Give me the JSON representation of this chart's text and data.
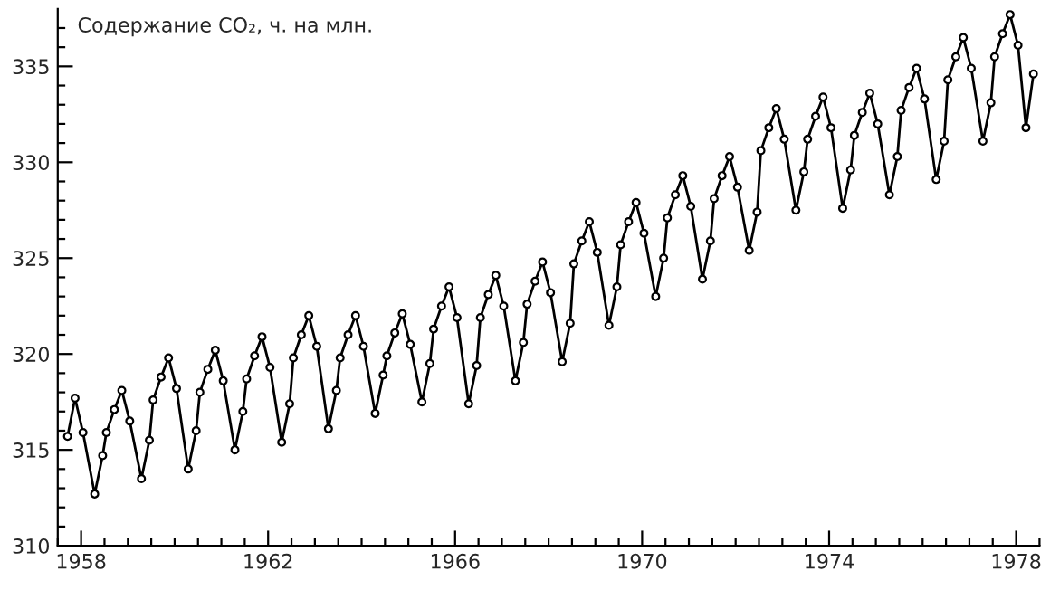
{
  "chart_data": {
    "type": "line",
    "ylabel": "Содержание CO₂, ч. на млн.",
    "x": [
      1958.21,
      1958.37,
      1958.54,
      1958.79,
      1958.96,
      1959.04,
      1959.21,
      1959.37,
      1959.54,
      1959.79,
      1959.96,
      1960.04,
      1960.21,
      1960.37,
      1960.54,
      1960.79,
      1960.96,
      1961.04,
      1961.21,
      1961.37,
      1961.54,
      1961.79,
      1961.96,
      1962.04,
      1962.21,
      1962.37,
      1962.54,
      1962.79,
      1962.96,
      1963.04,
      1963.21,
      1963.37,
      1963.54,
      1963.79,
      1963.96,
      1964.04,
      1964.21,
      1964.37,
      1964.54,
      1964.79,
      1964.96,
      1965.04,
      1965.21,
      1965.37,
      1965.54,
      1965.79,
      1965.96,
      1966.04,
      1966.21,
      1966.37,
      1966.54,
      1966.79,
      1966.96,
      1967.04,
      1967.21,
      1967.37,
      1967.54,
      1967.79,
      1967.96,
      1968.04,
      1968.21,
      1968.37,
      1968.54,
      1968.79,
      1968.96,
      1969.04,
      1969.21,
      1969.37,
      1969.54,
      1969.79,
      1969.96,
      1970.04,
      1970.21,
      1970.37,
      1970.54,
      1970.79,
      1970.96,
      1971.04,
      1971.21,
      1971.37,
      1971.54,
      1971.79,
      1971.96,
      1972.04,
      1972.21,
      1972.37,
      1972.54,
      1972.79,
      1972.96,
      1973.04,
      1973.21,
      1973.37,
      1973.54,
      1973.79,
      1973.96,
      1974.04,
      1974.21,
      1974.37,
      1974.54,
      1974.79,
      1974.96,
      1975.04,
      1975.21,
      1975.37,
      1975.54,
      1975.79,
      1975.96,
      1976.04,
      1976.21,
      1976.37,
      1976.54,
      1976.79,
      1976.96,
      1977.04,
      1977.21,
      1977.37,
      1977.54,
      1977.79,
      1977.96,
      1978.04,
      1978.21,
      1978.37,
      1978.54,
      1978.71,
      1978.87
    ],
    "series": [
      {
        "color": "#000000",
        "values": [
          315.7,
          317.7,
          315.9,
          312.7,
          314.7,
          315.9,
          317.1,
          318.1,
          316.5,
          313.5,
          315.5,
          317.6,
          318.8,
          319.8,
          318.2,
          314.0,
          316.0,
          318.0,
          319.2,
          320.2,
          318.6,
          315.0,
          317.0,
          318.7,
          319.9,
          320.9,
          319.3,
          315.4,
          317.4,
          319.8,
          321.0,
          322.0,
          320.4,
          316.1,
          318.1,
          319.8,
          321.0,
          322.0,
          320.4,
          316.9,
          318.9,
          319.9,
          321.1,
          322.1,
          320.5,
          317.5,
          319.5,
          321.3,
          322.5,
          323.5,
          321.9,
          317.4,
          319.4,
          321.9,
          323.1,
          324.1,
          322.5,
          318.6,
          320.6,
          322.6,
          323.8,
          324.8,
          323.2,
          319.6,
          321.6,
          324.7,
          325.9,
          326.9,
          325.3,
          321.5,
          323.5,
          325.7,
          326.9,
          327.9,
          326.3,
          323.0,
          325.0,
          327.1,
          328.3,
          329.3,
          327.7,
          323.9,
          325.9,
          328.1,
          329.3,
          330.3,
          328.7,
          325.4,
          327.4,
          330.6,
          331.8,
          332.8,
          331.2,
          327.5,
          329.5,
          331.2,
          332.4,
          333.4,
          331.8,
          327.6,
          329.6,
          331.4,
          332.6,
          333.6,
          332.0,
          328.3,
          330.3,
          332.7,
          333.9,
          334.9,
          333.3,
          329.1,
          331.1,
          334.3,
          335.5,
          336.5,
          334.9,
          331.1,
          333.1,
          335.5,
          336.7,
          337.7,
          336.1,
          331.8,
          334.6
        ]
      }
    ],
    "marker": "circle",
    "line_style": "solid",
    "xlim": [
      1958.0,
      1979.0
    ],
    "xticks": [
      {
        "value": 1958.0,
        "label": null
      },
      {
        "value": 1958.5,
        "label": "1958"
      },
      {
        "value": 1959.0,
        "label": null
      },
      {
        "value": 1959.5,
        "label": null
      },
      {
        "value": 1960.0,
        "label": null
      },
      {
        "value": 1960.5,
        "label": null
      },
      {
        "value": 1961.0,
        "label": null
      },
      {
        "value": 1961.5,
        "label": null
      },
      {
        "value": 1962.0,
        "label": null
      },
      {
        "value": 1962.5,
        "label": "1962"
      },
      {
        "value": 1963.0,
        "label": null
      },
      {
        "value": 1963.5,
        "label": null
      },
      {
        "value": 1964.0,
        "label": null
      },
      {
        "value": 1964.5,
        "label": null
      },
      {
        "value": 1965.0,
        "label": null
      },
      {
        "value": 1965.5,
        "label": null
      },
      {
        "value": 1966.0,
        "label": null
      },
      {
        "value": 1966.5,
        "label": "1966"
      },
      {
        "value": 1967.0,
        "label": null
      },
      {
        "value": 1967.5,
        "label": null
      },
      {
        "value": 1968.0,
        "label": null
      },
      {
        "value": 1968.5,
        "label": null
      },
      {
        "value": 1969.0,
        "label": null
      },
      {
        "value": 1969.5,
        "label": null
      },
      {
        "value": 1970.0,
        "label": null
      },
      {
        "value": 1970.5,
        "label": "1970"
      },
      {
        "value": 1971.0,
        "label": null
      },
      {
        "value": 1971.5,
        "label": null
      },
      {
        "value": 1972.0,
        "label": null
      },
      {
        "value": 1972.5,
        "label": null
      },
      {
        "value": 1973.0,
        "label": null
      },
      {
        "value": 1973.5,
        "label": null
      },
      {
        "value": 1974.0,
        "label": null
      },
      {
        "value": 1974.5,
        "label": "1974"
      },
      {
        "value": 1975.0,
        "label": null
      },
      {
        "value": 1975.5,
        "label": null
      },
      {
        "value": 1976.0,
        "label": null
      },
      {
        "value": 1976.5,
        "label": null
      },
      {
        "value": 1977.0,
        "label": null
      },
      {
        "value": 1977.5,
        "label": null
      },
      {
        "value": 1978.0,
        "label": null
      },
      {
        "value": 1978.5,
        "label": "1978"
      },
      {
        "value": 1979.0,
        "label": null
      }
    ],
    "ylim": [
      310,
      338
    ],
    "yticks": [
      310,
      {
        "value": 311,
        "label": null
      },
      {
        "value": 312,
        "label": null
      },
      {
        "value": 313,
        "label": null
      },
      {
        "value": 314,
        "label": null
      },
      315,
      {
        "value": 316,
        "label": null
      },
      {
        "value": 317,
        "label": null
      },
      {
        "value": 318,
        "label": null
      },
      {
        "value": 319,
        "label": null
      },
      320,
      {
        "value": 321,
        "label": null
      },
      {
        "value": 322,
        "label": null
      },
      {
        "value": 323,
        "label": null
      },
      {
        "value": 324,
        "label": null
      },
      325,
      {
        "value": 326,
        "label": null
      },
      {
        "value": 327,
        "label": null
      },
      {
        "value": 328,
        "label": null
      },
      {
        "value": 329,
        "label": null
      },
      330,
      {
        "value": 331,
        "label": null
      },
      {
        "value": 332,
        "label": null
      },
      {
        "value": 333,
        "label": null
      },
      {
        "value": 334,
        "label": null
      },
      335,
      {
        "value": 336,
        "label": null
      },
      {
        "value": 337,
        "label": null
      }
    ],
    "grid": false,
    "legend": false
  }
}
